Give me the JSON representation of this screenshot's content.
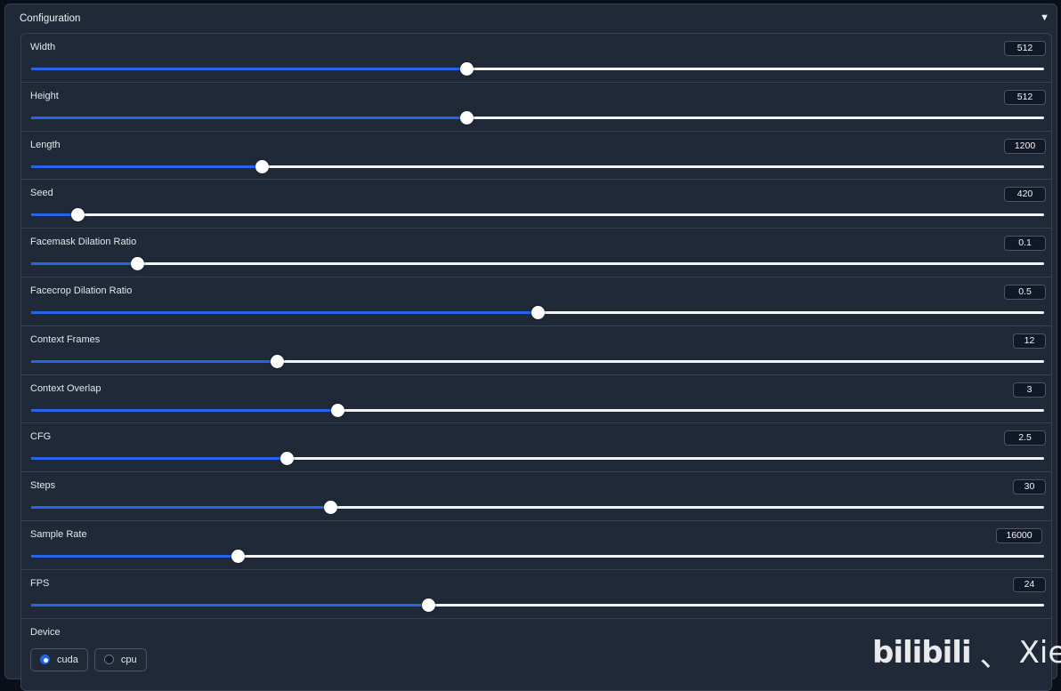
{
  "panel": {
    "title": "Configuration",
    "toggle_icon": "▼"
  },
  "sliders": [
    {
      "label": "Width",
      "value": "512",
      "fraction": 0.43
    },
    {
      "label": "Height",
      "value": "512",
      "fraction": 0.43
    },
    {
      "label": "Length",
      "value": "1200",
      "fraction": 0.228
    },
    {
      "label": "Seed",
      "value": "420",
      "fraction": 0.046
    },
    {
      "label": "Facemask Dilation Ratio",
      "value": "0.1",
      "fraction": 0.105
    },
    {
      "label": "Facecrop Dilation Ratio",
      "value": "0.5",
      "fraction": 0.5
    },
    {
      "label": "Context Frames",
      "value": "12",
      "fraction": 0.243
    },
    {
      "label": "Context Overlap",
      "value": "3",
      "fraction": 0.303
    },
    {
      "label": "CFG",
      "value": "2.5",
      "fraction": 0.253
    },
    {
      "label": "Steps",
      "value": "30",
      "fraction": 0.296
    },
    {
      "label": "Sample Rate",
      "value": "16000",
      "fraction": 0.204
    },
    {
      "label": "FPS",
      "value": "24",
      "fraction": 0.392
    }
  ],
  "device": {
    "label": "Device",
    "options": [
      {
        "label": "cuda",
        "checked": true
      },
      {
        "label": "cpu",
        "checked": false
      }
    ]
  },
  "watermark": {
    "logo": "bilibili",
    "separator": "、",
    "name": "Xier"
  },
  "colors": {
    "accent": "#2563eb",
    "panel_bg": "#1f2937",
    "page_bg": "#0b0f19"
  }
}
